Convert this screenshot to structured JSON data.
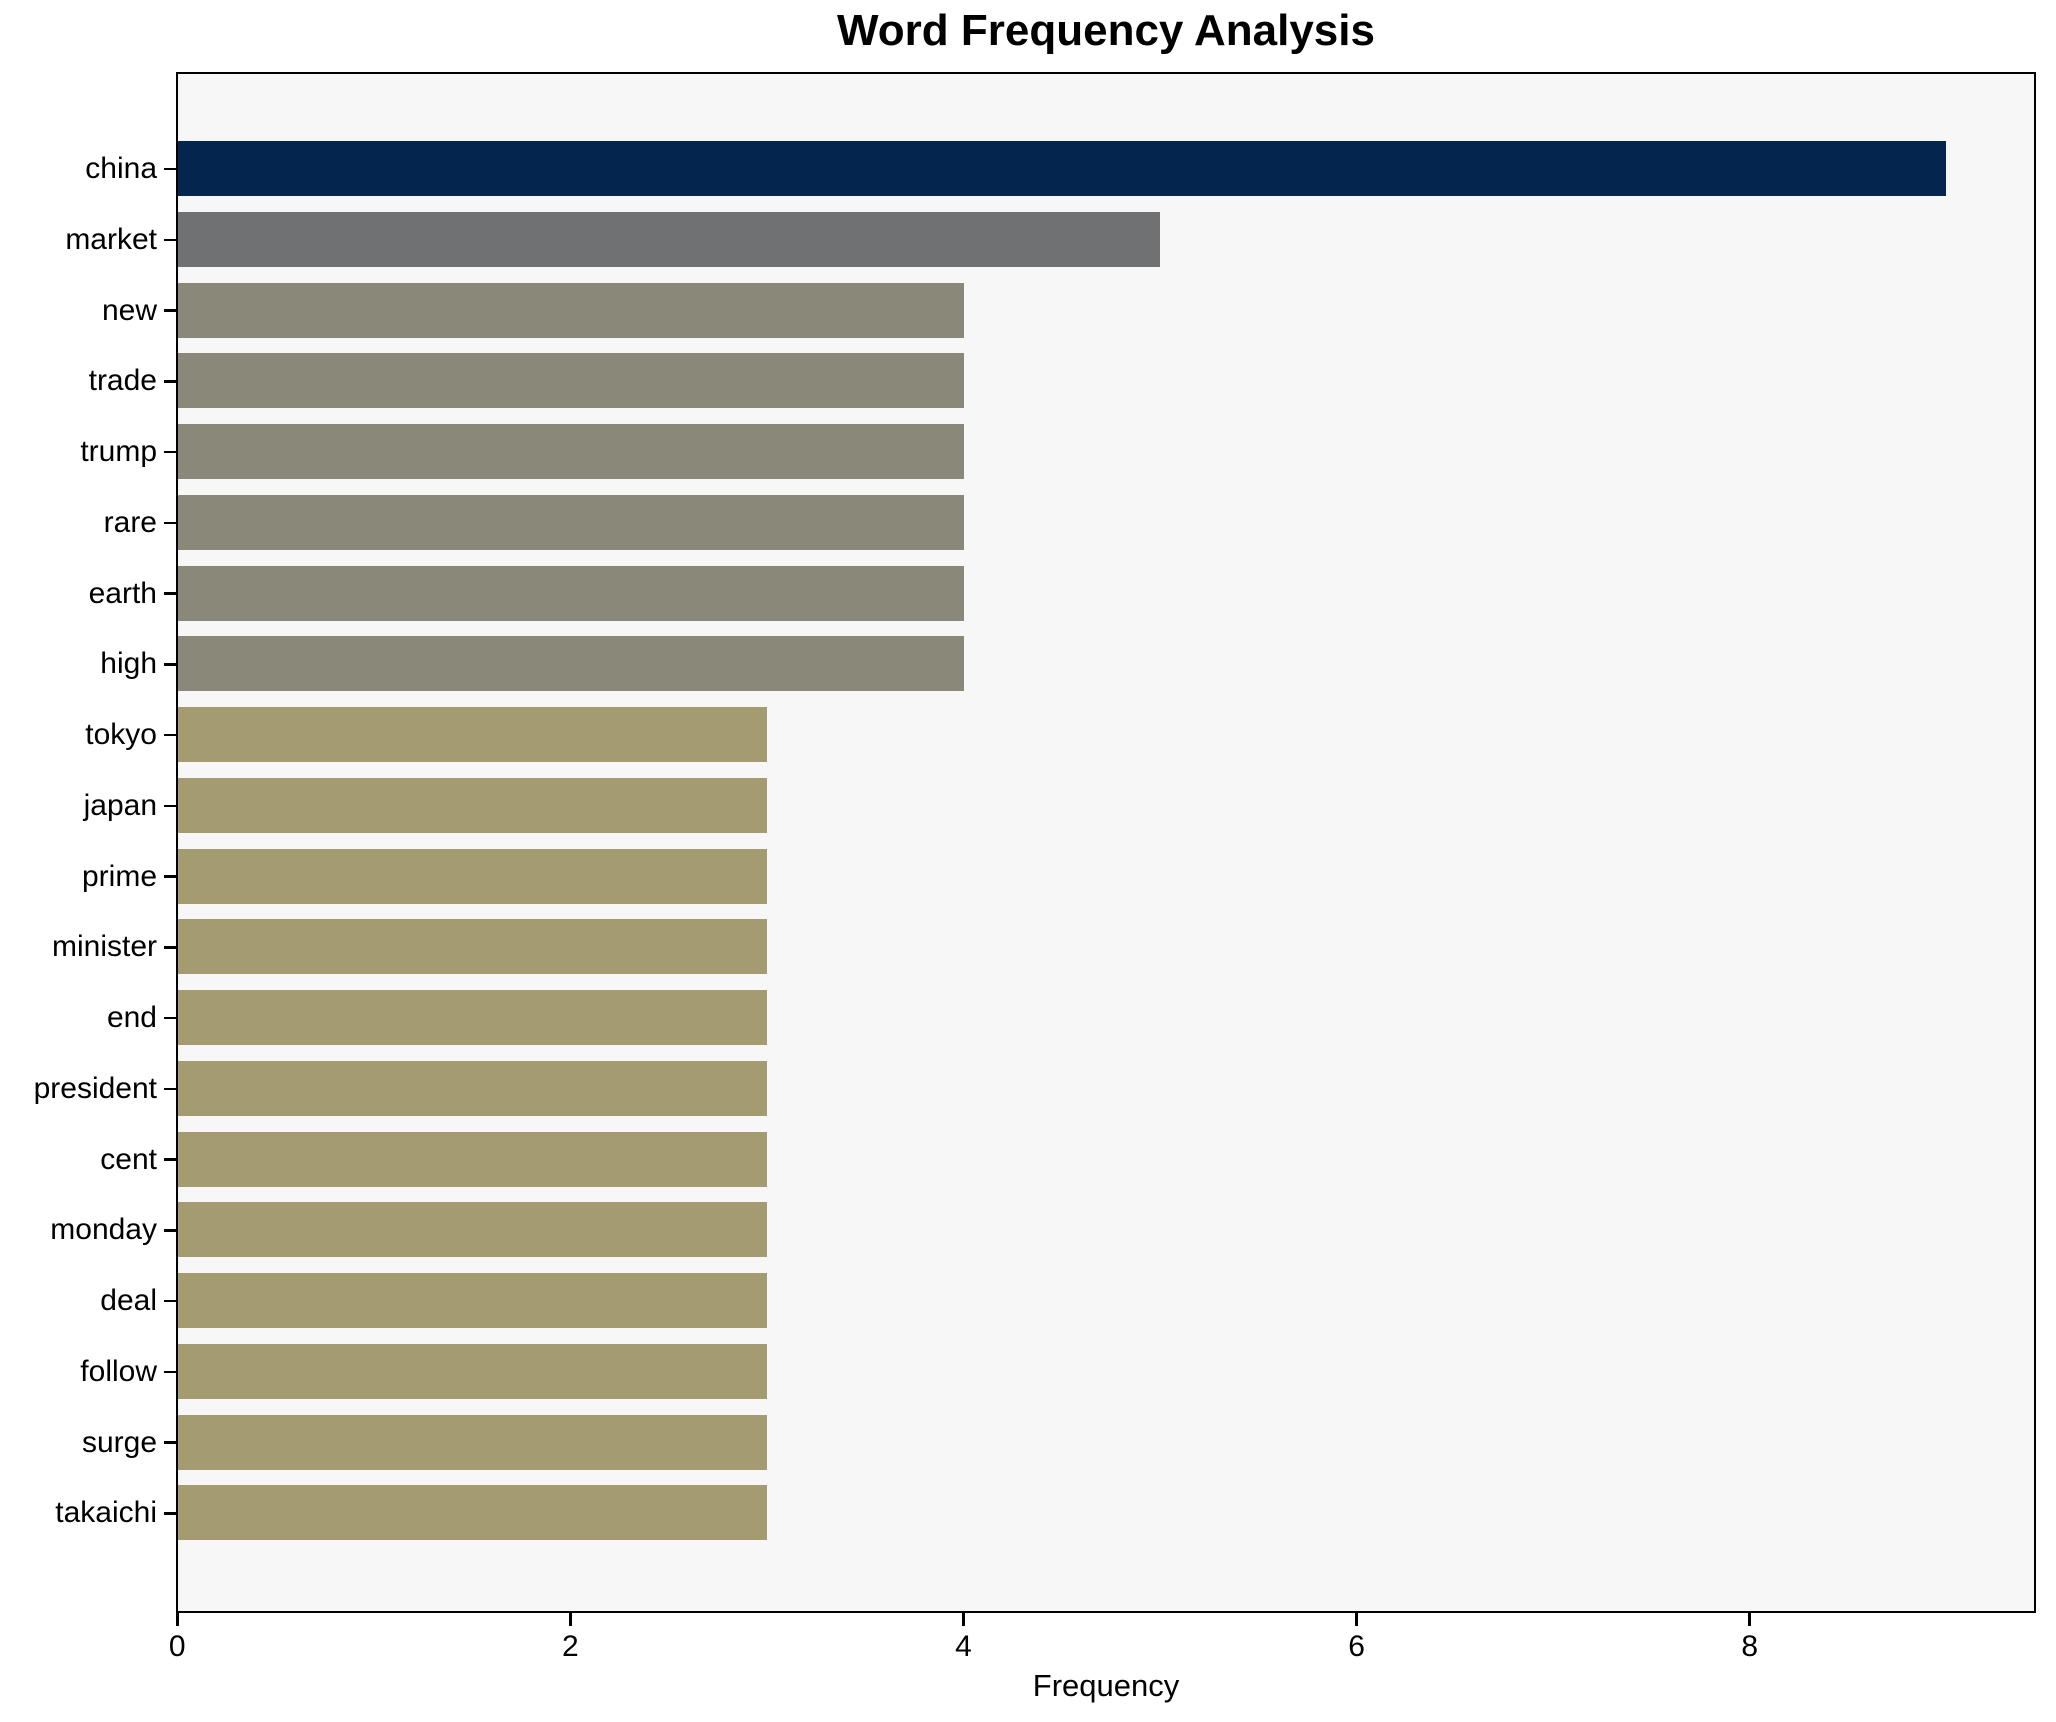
{
  "chart_data": {
    "type": "bar",
    "orientation": "horizontal",
    "title": "Word Frequency Analysis",
    "xlabel": "Frequency",
    "ylabel": "",
    "categories": [
      "china",
      "market",
      "new",
      "trade",
      "trump",
      "rare",
      "earth",
      "high",
      "tokyo",
      "japan",
      "prime",
      "minister",
      "end",
      "president",
      "cent",
      "monday",
      "deal",
      "follow",
      "surge",
      "takaichi"
    ],
    "values": [
      9,
      5,
      4,
      4,
      4,
      4,
      4,
      4,
      3,
      3,
      3,
      3,
      3,
      3,
      3,
      3,
      3,
      3,
      3,
      3
    ],
    "bar_colors": [
      "#03254e",
      "#6f7173",
      "#8a8878",
      "#8a8878",
      "#8a8878",
      "#8a8878",
      "#8a8878",
      "#8a8878",
      "#a49c70",
      "#a49c70",
      "#a49c70",
      "#a49c70",
      "#a49c70",
      "#a49c70",
      "#a49c70",
      "#a49c70",
      "#a49c70",
      "#a49c70",
      "#a49c70",
      "#a49c70"
    ],
    "xlim": [
      0,
      9.45
    ],
    "xticks": [
      0,
      2,
      4,
      6,
      8
    ],
    "grid": false,
    "legend": "none",
    "plot_background": "#f7f7f8",
    "figure_background": "#ffffff",
    "axis_color": "#000000"
  }
}
